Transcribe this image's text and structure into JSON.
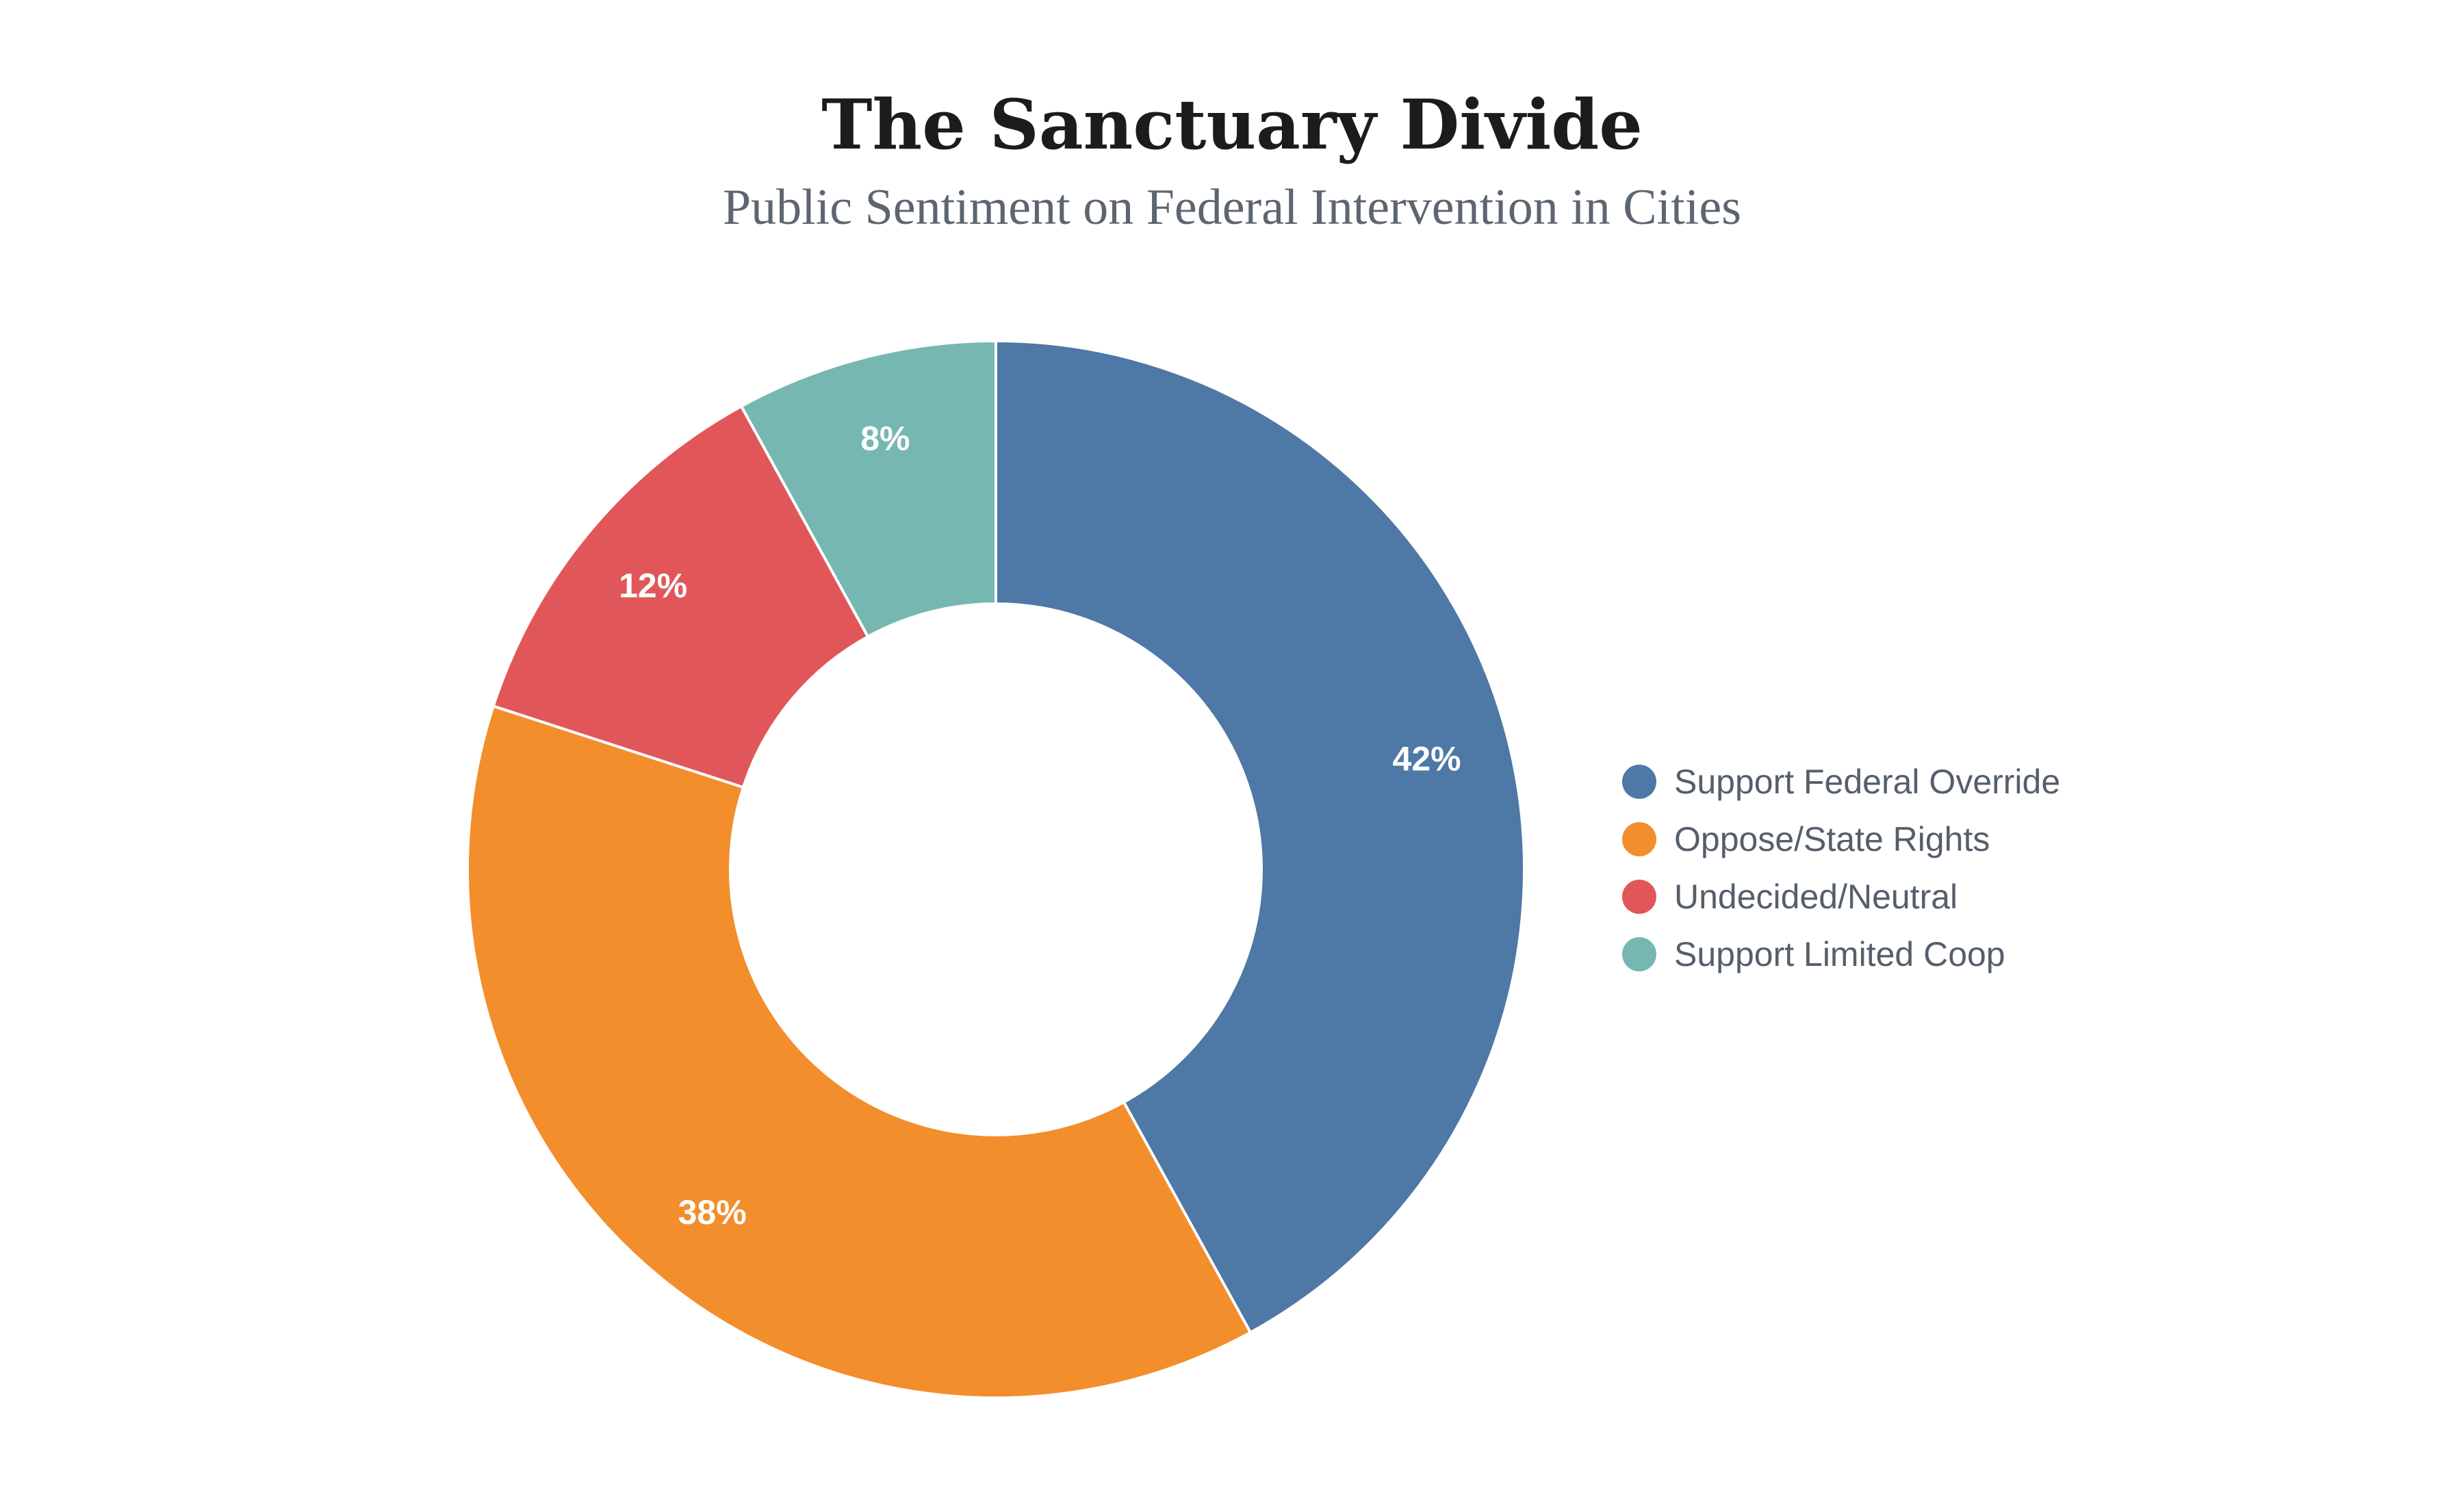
{
  "chart_data": {
    "type": "pie",
    "title": "The Sanctuary Divide",
    "subtitle": "Public Sentiment on Federal Intervention in Cities",
    "categories": [
      "Support Federal Override",
      "Oppose/State Rights",
      "Undecided/Neutral",
      "Support Limited Coop"
    ],
    "values": [
      42,
      38,
      12,
      8
    ],
    "value_labels": [
      "42%",
      "38%",
      "12%",
      "8%"
    ],
    "colors": [
      "#4e78a5",
      "#f28e2c",
      "#e15759",
      "#76b7b2"
    ],
    "donut": true,
    "legend": "right"
  }
}
